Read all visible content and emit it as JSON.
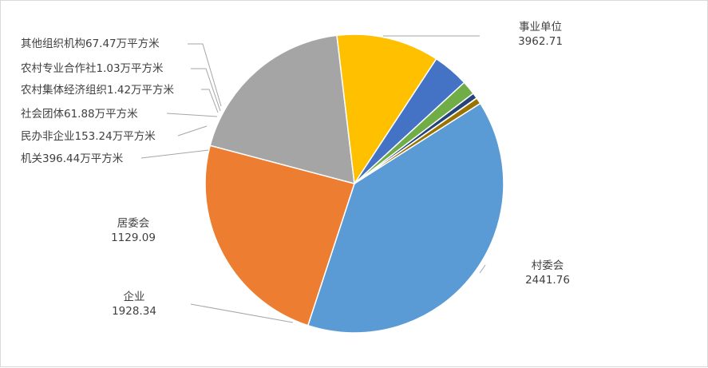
{
  "chart_data": {
    "type": "pie",
    "unit": "万平方米",
    "slices": [
      {
        "name": "事业单位",
        "value": 3962.71,
        "value_text": "3962.71万平方米",
        "color": "#5b9bd5"
      },
      {
        "name": "村委会",
        "value": 2441.76,
        "value_text": "2441.76万平方米",
        "color": "#ed7d31"
      },
      {
        "name": "企业",
        "value": 1928.34,
        "value_text": "1928.34万平方米",
        "color": "#a5a5a5"
      },
      {
        "name": "居委会",
        "value": 1129.09,
        "value_text": "1129.09万平方米",
        "color": "#ffc000"
      },
      {
        "name": "机关",
        "value": 396.44,
        "value_text": "机关396.44万平方米",
        "color": "#4472c4"
      },
      {
        "name": "民办非企业",
        "value": 153.24,
        "value_text": "民办非企业153.24万平方米",
        "color": "#70ad47"
      },
      {
        "name": "社会团体",
        "value": 61.88,
        "value_text": "社会团体61.88万平方米",
        "color": "#264478"
      },
      {
        "name": "农村集体经济组织",
        "value": 1.42,
        "value_text": "农村集体经济组织1.42万平方米",
        "color": "#9e480e"
      },
      {
        "name": "农村专业合作社",
        "value": 1.03,
        "value_text": "农村专业合作社1.03万平方米",
        "color": "#636363"
      },
      {
        "name": "其他组织机构",
        "value": 67.47,
        "value_text": "其他组织机构67.47万平方米",
        "color": "#997300"
      }
    ]
  }
}
